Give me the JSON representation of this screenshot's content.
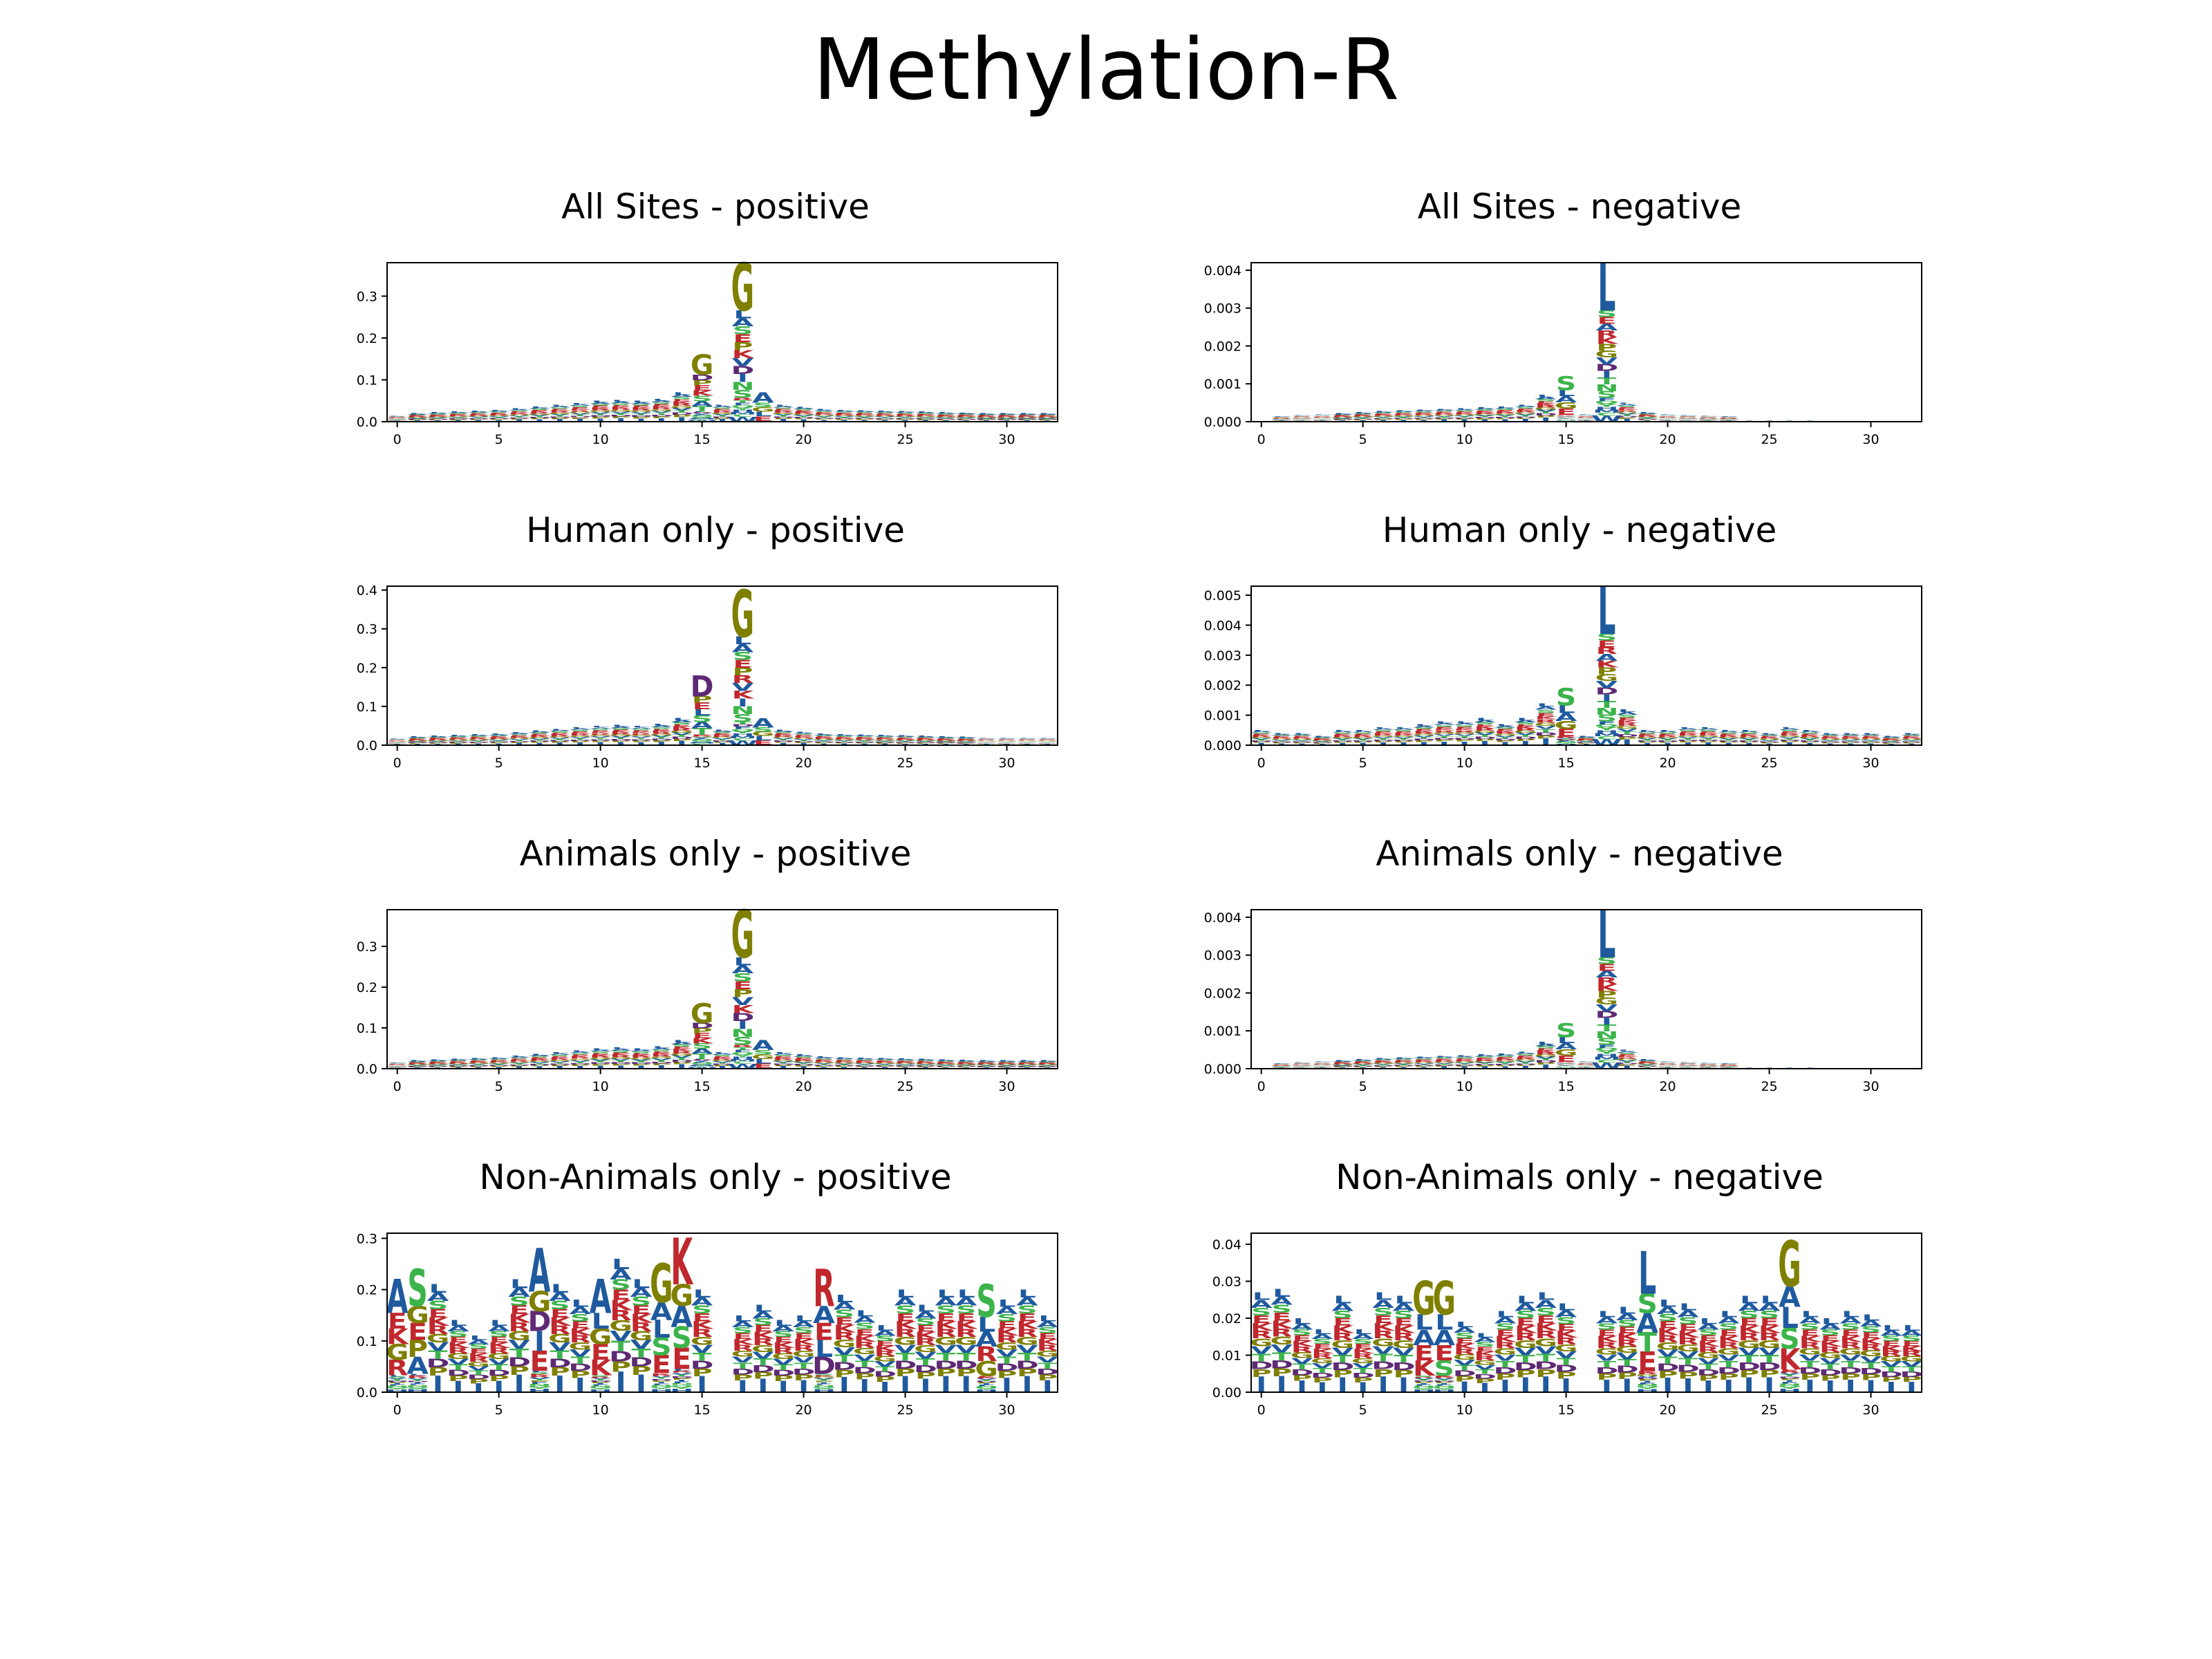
{
  "title": "Methylation-R",
  "colors": {
    "G": "#7f7f00",
    "L": "#1f5a9e",
    "A": "#1f5a9e",
    "S": "#3cb44b",
    "K": "#c0282d",
    "R": "#c0282d",
    "P": "#7f7f00",
    "E": "#c0282d",
    "D": "#5e2a74",
    "V": "#1f5a9e",
    "T": "#3cb44b",
    "N": "#3cb44b",
    "Q": "#3cb44b",
    "F": "#1f5a9e",
    "I": "#1f5a9e",
    "H": "#1f5a9e",
    "Y": "#3cb44b",
    "C": "#3cb44b",
    "M": "#1f5a9e",
    "W": "#1f5a9e"
  },
  "chart_data": [
    {
      "type": "sequence-logo",
      "title": "All Sites - positive",
      "ylim": [
        0,
        0.38
      ],
      "yticks": [
        "0.0",
        "0.1",
        "0.2",
        "0.3"
      ],
      "ytick_values": [
        0,
        0.1,
        0.2,
        0.3
      ],
      "xticks": [
        "0",
        "5",
        "10",
        "15",
        "20",
        "25",
        "30"
      ],
      "xtick_values": [
        0,
        5,
        10,
        15,
        20,
        25,
        30
      ],
      "xlim": [
        -0.5,
        32.5
      ],
      "totals": [
        0.015,
        0.02,
        0.022,
        0.024,
        0.026,
        0.028,
        0.032,
        0.036,
        0.04,
        0.045,
        0.05,
        0.052,
        0.05,
        0.055,
        0.07,
        0.16,
        0.04,
        0.38,
        0.08,
        0.04,
        0.035,
        0.03,
        0.028,
        0.027,
        0.026,
        0.025,
        0.024,
        0.022,
        0.021,
        0.02,
        0.02,
        0.02,
        0.02
      ],
      "tops": {
        "15": [
          "G",
          "D",
          "P",
          "E",
          "K",
          "S",
          "A",
          "T"
        ],
        "17": [
          "G",
          "L",
          "A",
          "S",
          "E",
          "P",
          "K",
          "V",
          "D",
          "I",
          "N",
          "S"
        ],
        "18": [
          "A",
          "S",
          "G",
          "L",
          "E"
        ]
      }
    },
    {
      "type": "sequence-logo",
      "title": "All Sites - negative",
      "ylim": [
        0,
        0.0042
      ],
      "yticks": [
        "0.000",
        "0.001",
        "0.002",
        "0.003",
        "0.004"
      ],
      "ytick_values": [
        0,
        0.001,
        0.002,
        0.003,
        0.004
      ],
      "xticks": [
        "0",
        "5",
        "10",
        "15",
        "20",
        "25",
        "30"
      ],
      "xtick_values": [
        0,
        5,
        10,
        15,
        20,
        25,
        30
      ],
      "xlim": [
        -0.5,
        32.5
      ],
      "totals": [
        0.0001,
        0.00015,
        0.00018,
        0.0002,
        0.00022,
        0.00025,
        0.00028,
        0.0003,
        0.00032,
        0.00034,
        0.00036,
        0.00038,
        0.0004,
        0.00045,
        0.0007,
        0.0012,
        0.0002,
        0.0042,
        0.0005,
        0.00025,
        0.0002,
        0.00018,
        0.00016,
        0.00015,
        0.00014,
        0.00013,
        0.00012,
        0.00011,
        0.0001,
        0.0001,
        0.0001,
        0.0001,
        0.0001
      ],
      "tops": {
        "17": [
          "L",
          "S",
          "E",
          "A",
          "R",
          "K",
          "P",
          "G",
          "V",
          "D",
          "I",
          "T",
          "N",
          "S"
        ],
        "15": [
          "S",
          "L",
          "A",
          "G",
          "E"
        ]
      }
    },
    {
      "type": "sequence-logo",
      "title": "Human only - positive",
      "ylim": [
        0,
        0.41
      ],
      "yticks": [
        "0.0",
        "0.1",
        "0.2",
        "0.3",
        "0.4"
      ],
      "ytick_values": [
        0,
        0.1,
        0.2,
        0.3,
        0.4
      ],
      "xticks": [
        "0",
        "5",
        "10",
        "15",
        "20",
        "25",
        "30"
      ],
      "xtick_values": [
        0,
        5,
        10,
        15,
        20,
        25,
        30
      ],
      "xlim": [
        -0.5,
        32.5
      ],
      "totals": [
        0.018,
        0.022,
        0.024,
        0.026,
        0.028,
        0.03,
        0.034,
        0.038,
        0.042,
        0.046,
        0.05,
        0.052,
        0.05,
        0.055,
        0.07,
        0.18,
        0.04,
        0.4,
        0.08,
        0.04,
        0.035,
        0.03,
        0.028,
        0.027,
        0.026,
        0.025,
        0.024,
        0.022,
        0.021,
        0.02,
        0.02,
        0.02,
        0.02
      ],
      "tops": {
        "15": [
          "D",
          "P",
          "E",
          "L",
          "S",
          "A",
          "T"
        ],
        "17": [
          "G",
          "L",
          "A",
          "S",
          "E",
          "P",
          "R",
          "V",
          "K",
          "I",
          "N",
          "S"
        ],
        "18": [
          "A",
          "S",
          "G",
          "L",
          "E"
        ]
      }
    },
    {
      "type": "sequence-logo",
      "title": "Human only - negative",
      "ylim": [
        0,
        0.0053
      ],
      "yticks": [
        "0.000",
        "0.001",
        "0.002",
        "0.003",
        "0.004",
        "0.005"
      ],
      "ytick_values": [
        0,
        0.001,
        0.002,
        0.003,
        0.004,
        0.005
      ],
      "xticks": [
        "0",
        "5",
        "10",
        "15",
        "20",
        "25",
        "30"
      ],
      "xtick_values": [
        0,
        5,
        10,
        15,
        20,
        25,
        30
      ],
      "xlim": [
        -0.5,
        32.5
      ],
      "totals": [
        0.0005,
        0.0004,
        0.0004,
        0.0003,
        0.0005,
        0.0005,
        0.0006,
        0.0006,
        0.0007,
        0.0008,
        0.0008,
        0.0009,
        0.0007,
        0.0009,
        0.0014,
        0.0019,
        0.0003,
        0.0053,
        0.0012,
        0.0005,
        0.0005,
        0.0006,
        0.0006,
        0.0005,
        0.0005,
        0.0004,
        0.0006,
        0.0005,
        0.0004,
        0.0004,
        0.0004,
        0.0003,
        0.0004
      ],
      "tops": {
        "17": [
          "L",
          "S",
          "E",
          "R",
          "A",
          "K",
          "P",
          "G",
          "V",
          "D",
          "I",
          "T",
          "N",
          "S"
        ],
        "15": [
          "S",
          "L",
          "A",
          "G",
          "E"
        ]
      }
    },
    {
      "type": "sequence-logo",
      "title": "Animals only - positive",
      "ylim": [
        0,
        0.39
      ],
      "yticks": [
        "0.0",
        "0.1",
        "0.2",
        "0.3"
      ],
      "ytick_values": [
        0,
        0.1,
        0.2,
        0.3
      ],
      "xticks": [
        "0",
        "5",
        "10",
        "15",
        "20",
        "25",
        "30"
      ],
      "xtick_values": [
        0,
        5,
        10,
        15,
        20,
        25,
        30
      ],
      "xlim": [
        -0.5,
        32.5
      ],
      "totals": [
        0.016,
        0.02,
        0.022,
        0.024,
        0.026,
        0.028,
        0.032,
        0.036,
        0.04,
        0.045,
        0.05,
        0.052,
        0.05,
        0.055,
        0.07,
        0.16,
        0.04,
        0.39,
        0.08,
        0.04,
        0.035,
        0.03,
        0.028,
        0.027,
        0.026,
        0.025,
        0.024,
        0.022,
        0.021,
        0.02,
        0.02,
        0.02,
        0.02
      ],
      "tops": {
        "15": [
          "G",
          "D",
          "P",
          "E",
          "K",
          "S",
          "A",
          "T"
        ],
        "17": [
          "G",
          "L",
          "A",
          "S",
          "E",
          "P",
          "V",
          "K",
          "D",
          "I",
          "N",
          "S"
        ],
        "18": [
          "A",
          "S",
          "G",
          "L",
          "E"
        ]
      }
    },
    {
      "type": "sequence-logo",
      "title": "Animals only - negative",
      "ylim": [
        0,
        0.0042
      ],
      "yticks": [
        "0.000",
        "0.001",
        "0.002",
        "0.003",
        "0.004"
      ],
      "ytick_values": [
        0,
        0.001,
        0.002,
        0.003,
        0.004
      ],
      "xticks": [
        "0",
        "5",
        "10",
        "15",
        "20",
        "25",
        "30"
      ],
      "xtick_values": [
        0,
        5,
        10,
        15,
        20,
        25,
        30
      ],
      "xlim": [
        -0.5,
        32.5
      ],
      "totals": [
        0.0001,
        0.00015,
        0.00018,
        0.0002,
        0.00022,
        0.00025,
        0.00028,
        0.0003,
        0.00032,
        0.00034,
        0.00036,
        0.00038,
        0.0004,
        0.00045,
        0.0007,
        0.0012,
        0.0002,
        0.0042,
        0.0005,
        0.00025,
        0.0002,
        0.00018,
        0.00016,
        0.00015,
        0.00014,
        0.00013,
        0.00012,
        0.00011,
        0.0001,
        0.0001,
        0.0001,
        0.0001,
        0.0001
      ],
      "tops": {
        "17": [
          "L",
          "S",
          "E",
          "A",
          "R",
          "K",
          "P",
          "G",
          "V",
          "D",
          "I",
          "T",
          "N",
          "S"
        ],
        "15": [
          "S",
          "L",
          "A",
          "G",
          "E"
        ]
      }
    },
    {
      "type": "sequence-logo",
      "title": "Non-Animals only - positive",
      "ylim": [
        0,
        0.31
      ],
      "yticks": [
        "0.0",
        "0.1",
        "0.2",
        "0.3"
      ],
      "ytick_values": [
        0,
        0.1,
        0.2,
        0.3
      ],
      "xticks": [
        "0",
        "5",
        "10",
        "15",
        "20",
        "25",
        "30"
      ],
      "xtick_values": [
        0,
        5,
        10,
        15,
        20,
        25,
        30
      ],
      "xlim": [
        -0.5,
        32.5
      ],
      "totals": [
        0.22,
        0.24,
        0.21,
        0.14,
        0.11,
        0.14,
        0.22,
        0.28,
        0.21,
        0.18,
        0.22,
        0.26,
        0.22,
        0.25,
        0.3,
        0.2,
        0.0,
        0.15,
        0.17,
        0.14,
        0.15,
        0.24,
        0.19,
        0.16,
        0.13,
        0.2,
        0.17,
        0.2,
        0.2,
        0.21,
        0.18,
        0.2,
        0.15
      ],
      "tops": {
        "0": [
          "A",
          "E",
          "K",
          "G",
          "R"
        ],
        "1": [
          "S",
          "G",
          "E",
          "P",
          "A"
        ],
        "7": [
          "A",
          "G",
          "D",
          "I",
          "E"
        ],
        "10": [
          "A",
          "L",
          "G",
          "E",
          "K"
        ],
        "13": [
          "G",
          "A",
          "L",
          "S",
          "E"
        ],
        "14": [
          "K",
          "G",
          "A",
          "S",
          "E"
        ],
        "21": [
          "R",
          "A",
          "E",
          "L",
          "D"
        ],
        "29": [
          "S",
          "L",
          "A",
          "R",
          "G"
        ]
      }
    },
    {
      "type": "sequence-logo",
      "title": "Non-Animals only - negative",
      "ylim": [
        0,
        0.043
      ],
      "yticks": [
        "0.00",
        "0.01",
        "0.02",
        "0.03",
        "0.04"
      ],
      "ytick_values": [
        0,
        0.01,
        0.02,
        0.03,
        0.04
      ],
      "xticks": [
        "0",
        "5",
        "10",
        "15",
        "20",
        "25",
        "30"
      ],
      "xtick_values": [
        0,
        5,
        10,
        15,
        20,
        25,
        30
      ],
      "xlim": [
        -0.5,
        32.5
      ],
      "totals": [
        0.027,
        0.028,
        0.02,
        0.017,
        0.026,
        0.017,
        0.027,
        0.026,
        0.03,
        0.03,
        0.019,
        0.016,
        0.022,
        0.026,
        0.027,
        0.024,
        0.0,
        0.022,
        0.023,
        0.038,
        0.025,
        0.024,
        0.02,
        0.022,
        0.026,
        0.026,
        0.041,
        0.022,
        0.02,
        0.022,
        0.021,
        0.018,
        0.018
      ],
      "tops": {
        "19": [
          "L",
          "S",
          "A",
          "T",
          "E"
        ],
        "26": [
          "G",
          "A",
          "L",
          "S",
          "K"
        ],
        "8": [
          "G",
          "L",
          "A",
          "E",
          "K"
        ],
        "9": [
          "G",
          "L",
          "A",
          "E",
          "S"
        ]
      }
    }
  ]
}
